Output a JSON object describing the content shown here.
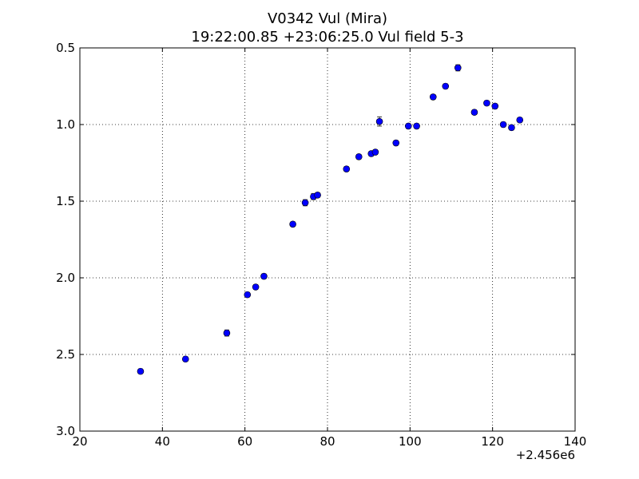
{
  "chart_data": {
    "type": "scatter",
    "title": "V0342 Vul (Mira)",
    "subtitle": "19:22:00.85 +23:06:25.0 Vul field 5-3",
    "xlabel": "",
    "ylabel": "",
    "x_offset_label": "+2.456e6",
    "xlim": [
      20,
      140
    ],
    "ylim": [
      3.0,
      0.5
    ],
    "y_inverted": true,
    "grid": true,
    "x_ticks": [
      "20",
      "40",
      "60",
      "80",
      "100",
      "120",
      "140"
    ],
    "y_ticks": [
      "0.5",
      "1.0",
      "1.5",
      "2.0",
      "2.5",
      "3.0"
    ],
    "marker_color": "#0000ff",
    "series": [
      {
        "x": [
          34.7,
          45.6,
          55.6,
          60.6,
          62.6,
          64.6,
          71.6,
          74.6,
          76.6,
          77.6,
          84.6,
          87.6,
          90.6,
          91.6,
          92.6,
          96.6,
          99.6,
          101.6,
          105.6,
          108.6,
          111.6,
          115.6,
          118.6,
          120.6,
          122.6,
          124.6,
          126.6
        ],
        "y": [
          2.61,
          2.53,
          2.36,
          2.11,
          2.06,
          1.99,
          1.65,
          1.51,
          1.47,
          1.46,
          1.29,
          1.21,
          1.19,
          1.18,
          0.98,
          1.12,
          1.01,
          1.01,
          0.82,
          0.75,
          0.63,
          0.92,
          0.86,
          0.88,
          1.0,
          1.02,
          0.97
        ],
        "err": [
          0.015,
          0.015,
          0.02,
          0.015,
          0.015,
          0.015,
          0.015,
          0.02,
          0.02,
          0.015,
          0.015,
          0.015,
          0.015,
          0.015,
          0.03,
          0.015,
          0.015,
          0.015,
          0.015,
          0.015,
          0.02,
          0.015,
          0.015,
          0.015,
          0.015,
          0.015,
          0.015
        ]
      }
    ]
  }
}
